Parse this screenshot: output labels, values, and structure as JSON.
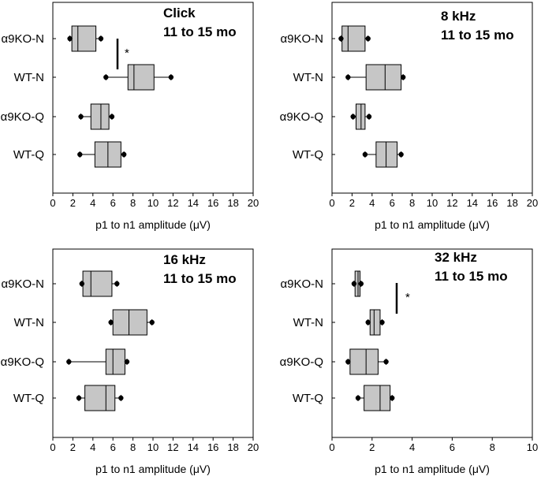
{
  "chart_data": [
    {
      "type": "box",
      "title": [
        "Click",
        "11 to 15 mo"
      ],
      "xlabel": "p1 to n1 amplitude (μV)",
      "xlim": [
        0,
        20
      ],
      "xticks": [
        0,
        2,
        4,
        6,
        8,
        10,
        12,
        14,
        16,
        18,
        20
      ],
      "categories": [
        "α9KO-N",
        "WT-N",
        "α9KO-Q",
        "WT-Q"
      ],
      "boxes": [
        {
          "whisker_low": 1.7,
          "q1": 1.9,
          "median": 2.5,
          "q3": 4.3,
          "whisker_high": 4.8,
          "outliers": [
            1.7,
            4.8
          ]
        },
        {
          "whisker_low": 5.3,
          "q1": 7.5,
          "median": 8.1,
          "q3": 10.1,
          "whisker_high": 11.8,
          "outliers": [
            5.3,
            11.8
          ]
        },
        {
          "whisker_low": 2.8,
          "q1": 3.8,
          "median": 4.8,
          "q3": 5.6,
          "whisker_high": 5.9,
          "outliers": [
            2.8,
            5.9
          ]
        },
        {
          "whisker_low": 2.7,
          "q1": 4.2,
          "median": 5.5,
          "q3": 6.8,
          "whisker_high": 7.1,
          "outliers": [
            2.7,
            7.1
          ]
        }
      ],
      "significance": {
        "between": [
          "α9KO-N",
          "WT-N"
        ],
        "at": 6.4,
        "label": "*"
      }
    },
    {
      "type": "box",
      "title": [
        "8 kHz",
        "11 to 15 mo"
      ],
      "xlabel": "p1 to n1 amplitude (μV)",
      "xlim": [
        0,
        20
      ],
      "xticks": [
        0,
        2,
        4,
        6,
        8,
        10,
        12,
        14,
        16,
        18,
        20
      ],
      "categories": [
        "α9KO-N",
        "WT-N",
        "α9KO-Q",
        "WT-Q"
      ],
      "boxes": [
        {
          "whisker_low": 0.9,
          "q1": 1.0,
          "median": 1.6,
          "q3": 3.3,
          "whisker_high": 3.6,
          "outliers": [
            0.9,
            3.6
          ]
        },
        {
          "whisker_low": 1.6,
          "q1": 3.4,
          "median": 5.3,
          "q3": 6.9,
          "whisker_high": 7.1,
          "outliers": [
            1.6,
            7.1
          ]
        },
        {
          "whisker_low": 2.1,
          "q1": 2.4,
          "median": 2.9,
          "q3": 3.3,
          "whisker_high": 3.7,
          "outliers": [
            2.1,
            3.7
          ]
        },
        {
          "whisker_low": 3.3,
          "q1": 4.4,
          "median": 5.4,
          "q3": 6.5,
          "whisker_high": 6.9,
          "outliers": [
            3.3,
            6.9
          ]
        }
      ]
    },
    {
      "type": "box",
      "title": [
        "16 kHz",
        "11 to 15 mo"
      ],
      "xlabel": "p1 to n1 amplitude (μV)",
      "xlim": [
        0,
        20
      ],
      "xticks": [
        0,
        2,
        4,
        6,
        8,
        10,
        12,
        14,
        16,
        18,
        20
      ],
      "categories": [
        "α9KO-N",
        "WT-N",
        "α9KO-Q",
        "WT-Q"
      ],
      "boxes": [
        {
          "whisker_low": 2.9,
          "q1": 3.0,
          "median": 3.8,
          "q3": 5.9,
          "whisker_high": 6.4,
          "outliers": [
            2.9,
            6.4
          ]
        },
        {
          "whisker_low": 5.8,
          "q1": 6.0,
          "median": 7.6,
          "q3": 9.4,
          "whisker_high": 9.9,
          "outliers": [
            5.8,
            9.9
          ]
        },
        {
          "whisker_low": 1.6,
          "q1": 5.3,
          "median": 6.0,
          "q3": 7.2,
          "whisker_high": 7.4,
          "outliers": [
            1.6,
            7.4
          ]
        },
        {
          "whisker_low": 2.6,
          "q1": 3.2,
          "median": 5.3,
          "q3": 6.2,
          "whisker_high": 6.8,
          "outliers": [
            2.6,
            6.8
          ]
        }
      ]
    },
    {
      "type": "box",
      "title": [
        "32 kHz",
        "11 to 15 mo"
      ],
      "xlabel": "p1 to n1 amplitude (μV)",
      "xlim": [
        0,
        10
      ],
      "xticks": [
        0,
        2,
        4,
        6,
        8,
        10
      ],
      "categories": [
        "α9KO-N",
        "WT-N",
        "α9KO-Q",
        "WT-Q"
      ],
      "boxes": [
        {
          "whisker_low": 1.1,
          "q1": 1.15,
          "median": 1.3,
          "q3": 1.4,
          "whisker_high": 1.45,
          "outliers": [
            1.1,
            1.45
          ]
        },
        {
          "whisker_low": 1.8,
          "q1": 1.9,
          "median": 2.1,
          "q3": 2.4,
          "whisker_high": 2.5,
          "outliers": [
            1.8,
            2.5
          ]
        },
        {
          "whisker_low": 0.8,
          "q1": 0.9,
          "median": 1.7,
          "q3": 2.3,
          "whisker_high": 2.7,
          "outliers": [
            0.8,
            2.7
          ]
        },
        {
          "whisker_low": 1.3,
          "q1": 1.6,
          "median": 2.4,
          "q3": 2.9,
          "whisker_high": 3.0,
          "outliers": [
            1.3,
            3.0
          ]
        }
      ],
      "significance": {
        "between": [
          "α9KO-N",
          "WT-N"
        ],
        "at": 3.2,
        "label": "*"
      }
    }
  ],
  "colors": {
    "box_fill": "#c6c6c6",
    "stroke": "#000000",
    "background": "#ffffff"
  }
}
